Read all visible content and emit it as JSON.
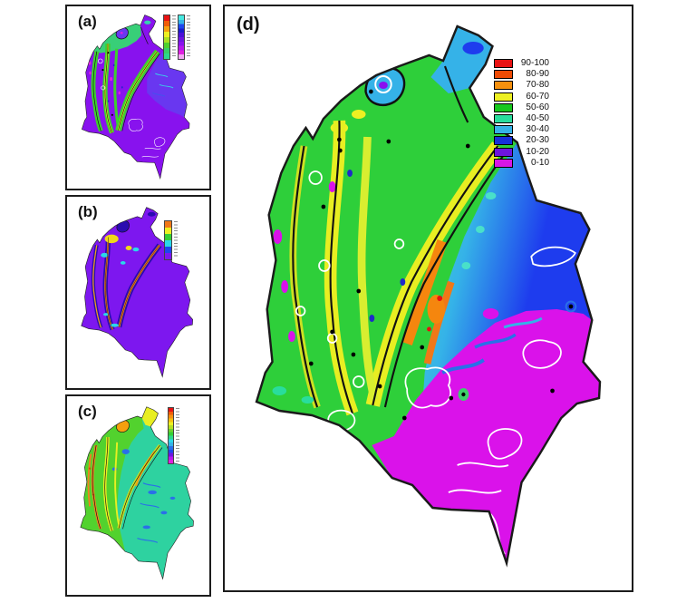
{
  "panels": {
    "a": {
      "label": "(a)"
    },
    "b": {
      "label": "(b)"
    },
    "c": {
      "label": "(c)"
    },
    "d": {
      "label": "(d)"
    }
  },
  "legend_d": {
    "entries": [
      {
        "label": "90-100",
        "color": "#e81212"
      },
      {
        "label": "80-90",
        "color": "#ef4b05"
      },
      {
        "label": "70-80",
        "color": "#f5900e"
      },
      {
        "label": "60-70",
        "color": "#edf022"
      },
      {
        "label": "50-60",
        "color": "#17c81f"
      },
      {
        "label": "40-50",
        "color": "#29dd9d"
      },
      {
        "label": "30-40",
        "color": "#35b2e8"
      },
      {
        "label": "20-30",
        "color": "#1630dc"
      },
      {
        "label": "10-20",
        "color": "#6d14e0"
      },
      {
        "label": "0-10",
        "color": "#d816e6"
      }
    ]
  },
  "colorbars": {
    "a_left": [
      "#e81212",
      "#f05c07",
      "#f5a00e",
      "#edf022",
      "#a8e022",
      "#4ed22e",
      "#35cf6a",
      "#2bd88a"
    ],
    "a_right": [
      "#45e8e0",
      "#35b2e8",
      "#1e46ee",
      "#1a1acc",
      "#4a10d8",
      "#6d14e0",
      "#8812ee",
      "#b616ee",
      "#e020e0",
      "#f2a6f2"
    ],
    "b": [
      "#f07818",
      "#edf022",
      "#35cf35",
      "#2ad8e8",
      "#1e46ee",
      "#7d17ef"
    ],
    "c": [
      "#e81212",
      "#f05c07",
      "#f5900e",
      "#f5c00e",
      "#edf022",
      "#b4e022",
      "#6ed22e",
      "#35cf35",
      "#2bd88a",
      "#2ad8e8",
      "#35b2e8",
      "#2a70e8",
      "#1e46ee",
      "#6d14e0",
      "#b616ee",
      "#e020e0"
    ]
  }
}
